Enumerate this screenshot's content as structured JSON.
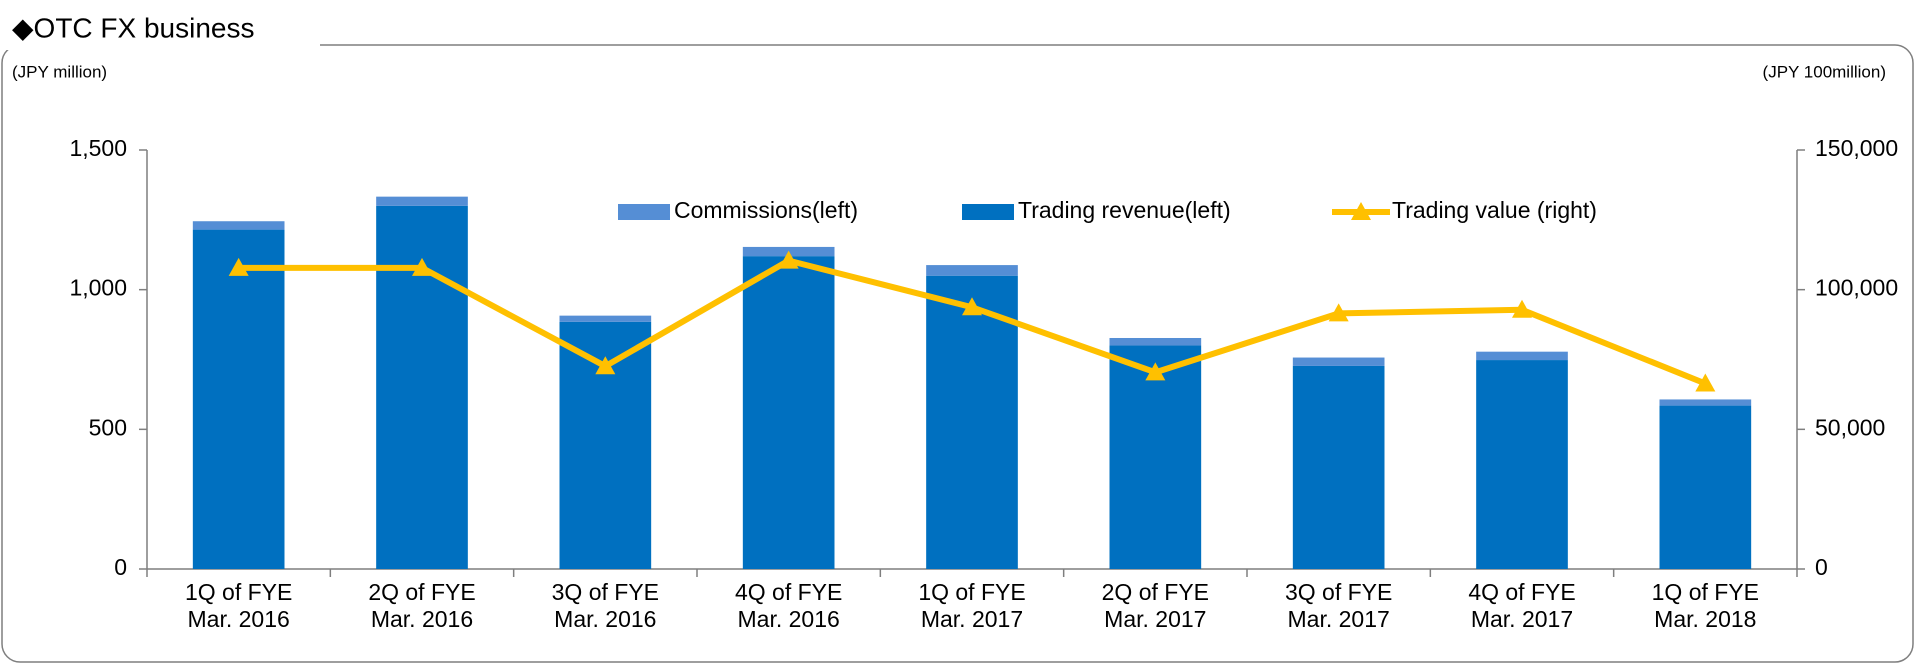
{
  "chart_data": {
    "type": "bar",
    "title": "◆OTC FX business",
    "y_label": "(JPY million)",
    "y2_label": "(JPY 100million)",
    "categories": [
      "1Q of FYE Mar. 2016",
      "2Q of FYE Mar. 2016",
      "3Q of FYE Mar. 2016",
      "4Q of FYE Mar. 2016",
      "1Q of FYE Mar. 2017",
      "2Q of FYE Mar. 2017",
      "3Q of FYE Mar. 2017",
      "4Q of FYE Mar. 2017",
      "1Q of FYE Mar. 2018"
    ],
    "series": [
      {
        "name": "Commissions(left)",
        "color": "#558ed5",
        "type": "bar",
        "values": [
          30,
          33,
          22,
          33,
          38,
          27,
          30,
          30,
          22
        ]
      },
      {
        "name": "Trading revenue(left)",
        "color": "#0070c0",
        "type": "bar",
        "values": [
          1215,
          1300,
          885,
          1120,
          1050,
          800,
          727,
          748,
          585
        ]
      },
      {
        "name": "Trading value (right)",
        "color": "#ffc000",
        "type": "line",
        "axis": "y2",
        "values": [
          107800,
          107800,
          72600,
          110400,
          93700,
          70400,
          91500,
          92800,
          66400
        ]
      }
    ],
    "stacked": true,
    "ylim": [
      0,
      1500
    ],
    "yticks": [
      0,
      500,
      {
        "value": 1000,
        "label": "1,000"
      },
      {
        "value": 1500,
        "label": "1,500"
      }
    ],
    "y2lim": [
      0,
      150000
    ],
    "y2ticks": [
      0,
      {
        "value": 50000,
        "label": "50,000"
      },
      {
        "value": 100000,
        "label": "100,000"
      },
      {
        "value": 150000,
        "label": "150,000"
      }
    ],
    "grid": false,
    "legend": "top"
  }
}
